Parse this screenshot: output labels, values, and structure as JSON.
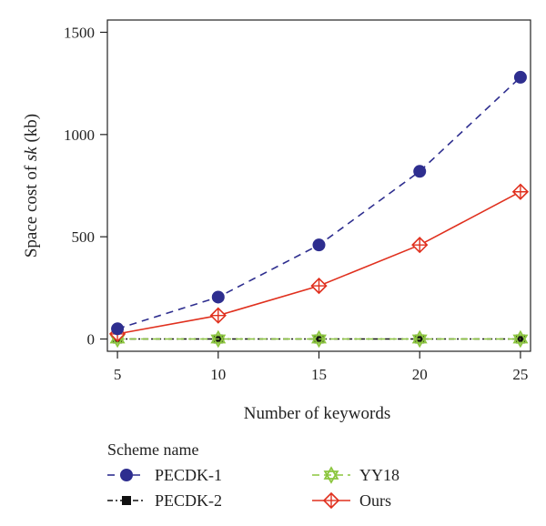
{
  "chart_data": {
    "type": "line",
    "xlabel": "Number of keywords",
    "ylabel_prefix": "Space cost of ",
    "ylabel_italic": "sk",
    "ylabel_suffix": " (kb)",
    "x": [
      5,
      10,
      15,
      20,
      25
    ],
    "xlim": [
      4.5,
      25.5
    ],
    "ylim": [
      -60,
      1560
    ],
    "xticks": [
      5,
      10,
      15,
      20,
      25
    ],
    "yticks": [
      0,
      500,
      1000,
      1500
    ],
    "grid": false,
    "legend_title": "Scheme name",
    "legend_position": "bottom",
    "series": [
      {
        "name": "PECDK-1",
        "values": [
          50,
          205,
          460,
          820,
          1280
        ],
        "color": "#2e2e8f",
        "dash": "8,6",
        "marker": "circle"
      },
      {
        "name": "PECDK-2",
        "values": [
          0,
          0,
          0,
          0,
          0
        ],
        "color": "#111111",
        "dash": "6,3,2,3",
        "marker": "square"
      },
      {
        "name": "YY18",
        "values": [
          0,
          0,
          0,
          0,
          0
        ],
        "color": "#8cc63f",
        "dash": "8,5",
        "marker": "hexagram"
      },
      {
        "name": "Ours",
        "values": [
          25,
          115,
          260,
          460,
          720
        ],
        "color": "#e0301e",
        "dash": "",
        "marker": "crossed-diamond"
      }
    ]
  }
}
